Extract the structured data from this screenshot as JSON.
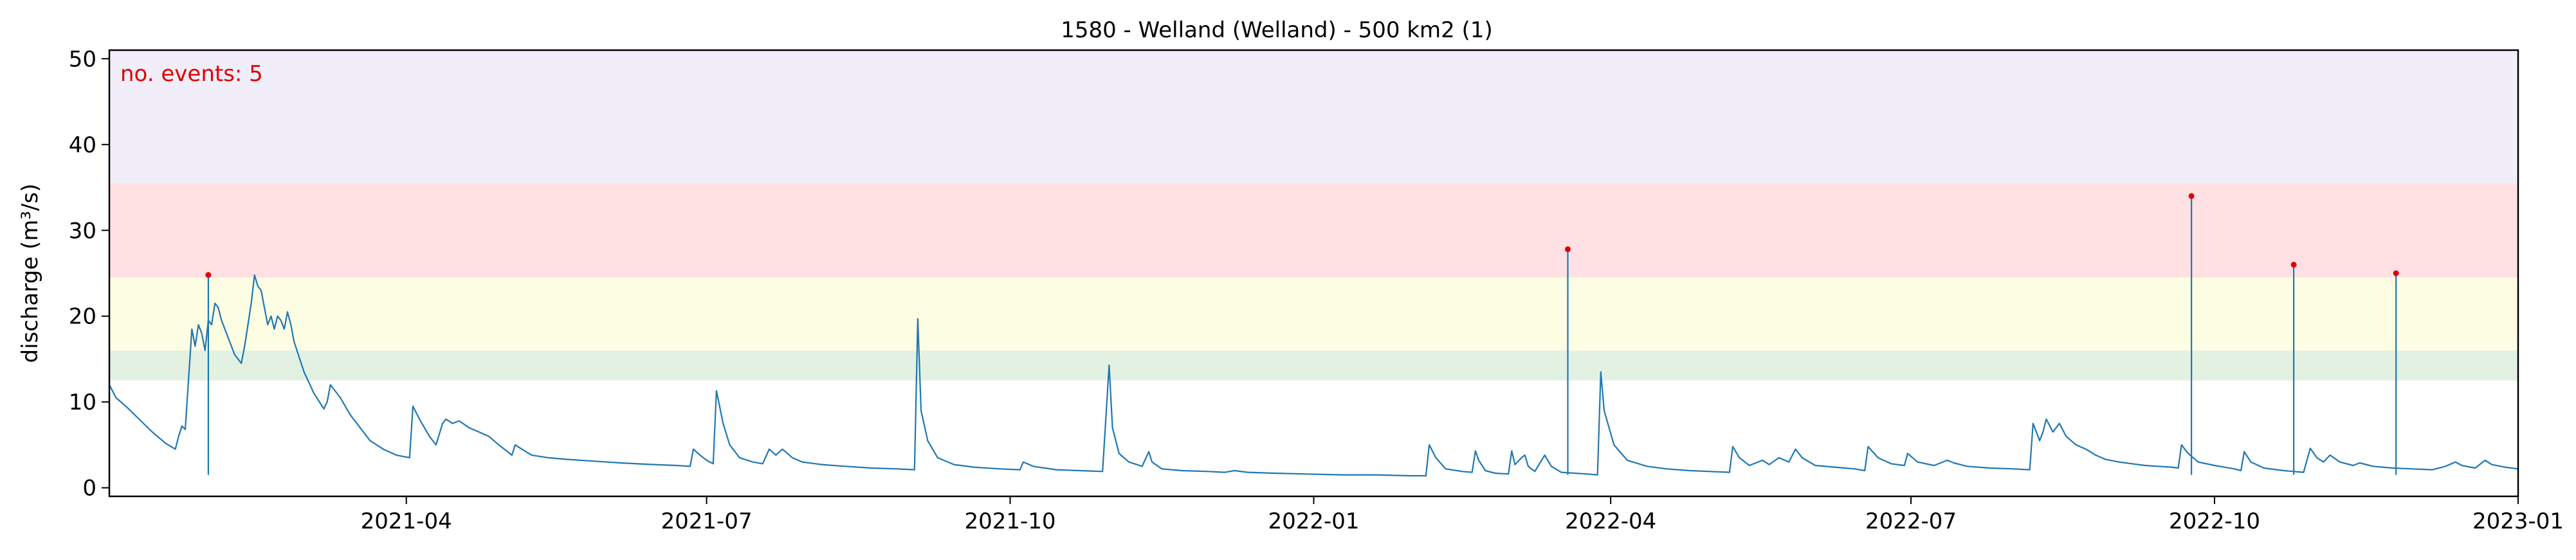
{
  "chart_data": {
    "type": "line",
    "title": "1580 - Welland (Welland) - 500 km2 (1)",
    "xlabel": "",
    "ylabel": "discharge (m³/s)",
    "xlim": [
      "2021-01-01",
      "2023-01-01"
    ],
    "ylim": [
      -1,
      51
    ],
    "grid": false,
    "x_ticks": [
      "2021-04-01",
      "2021-07-01",
      "2021-10-01",
      "2022-01-01",
      "2022-04-01",
      "2022-07-01",
      "2022-10-01",
      "2023-01-01"
    ],
    "x_tick_labels": [
      "2021-04",
      "2021-07",
      "2021-10",
      "2022-01",
      "2022-04",
      "2022-07",
      "2022-10",
      "2023-01"
    ],
    "y_ticks": [
      0,
      10,
      20,
      30,
      40,
      50
    ],
    "y_tick_labels": [
      "0",
      "10",
      "20",
      "30",
      "40",
      "50"
    ],
    "annotation": "no. events: 5",
    "bands": [
      {
        "y0": 12.5,
        "y1": 16,
        "color": "#e3f1e3"
      },
      {
        "y0": 16,
        "y1": 24.5,
        "color": "#fdfde3"
      },
      {
        "y0": 24.5,
        "y1": 35.5,
        "color": "#ffe1e3"
      },
      {
        "y0": 35.5,
        "y1": 51,
        "color": "#f1eefa"
      }
    ],
    "series": [
      {
        "color": "#1f77b4",
        "points": [
          [
            "2021-01-01",
            12.0
          ],
          [
            "2021-01-03",
            10.5
          ],
          [
            "2021-01-06",
            9.5
          ],
          [
            "2021-01-10",
            8.0
          ],
          [
            "2021-01-14",
            6.5
          ],
          [
            "2021-01-18",
            5.2
          ],
          [
            "2021-01-21",
            4.5
          ],
          [
            "2021-01-22",
            6.0
          ],
          [
            "2021-01-23",
            7.2
          ],
          [
            "2021-01-24",
            6.8
          ],
          [
            "2021-01-26",
            18.5
          ],
          [
            "2021-01-27",
            16.5
          ],
          [
            "2021-01-28",
            19.0
          ],
          [
            "2021-01-29",
            18.0
          ],
          [
            "2021-01-30",
            16.0
          ],
          [
            "2021-01-31",
            19.5
          ],
          [
            "2021-02-01",
            19.0
          ],
          [
            "2021-02-02",
            21.5
          ],
          [
            "2021-02-03",
            21.0
          ],
          [
            "2021-02-04",
            19.5
          ],
          [
            "2021-02-06",
            17.5
          ],
          [
            "2021-02-08",
            15.5
          ],
          [
            "2021-02-10",
            14.5
          ],
          [
            "2021-02-11",
            16.5
          ],
          [
            "2021-02-12",
            19.0
          ],
          [
            "2021-02-13",
            21.5
          ],
          [
            "2021-02-14",
            24.8
          ],
          [
            "2021-02-15",
            23.5
          ],
          [
            "2021-02-16",
            23.0
          ],
          [
            "2021-02-17",
            21.0
          ],
          [
            "2021-02-18",
            19.0
          ],
          [
            "2021-02-19",
            20.0
          ],
          [
            "2021-02-20",
            18.5
          ],
          [
            "2021-02-21",
            20.0
          ],
          [
            "2021-02-22",
            19.5
          ],
          [
            "2021-02-23",
            18.5
          ],
          [
            "2021-02-24",
            20.5
          ],
          [
            "2021-02-25",
            19.0
          ],
          [
            "2021-02-26",
            17.0
          ],
          [
            "2021-03-01",
            13.5
          ],
          [
            "2021-03-04",
            11.0
          ],
          [
            "2021-03-07",
            9.2
          ],
          [
            "2021-03-08",
            10.0
          ],
          [
            "2021-03-09",
            12.0
          ],
          [
            "2021-03-12",
            10.5
          ],
          [
            "2021-03-15",
            8.5
          ],
          [
            "2021-03-18",
            7.0
          ],
          [
            "2021-03-21",
            5.5
          ],
          [
            "2021-03-25",
            4.5
          ],
          [
            "2021-03-29",
            3.8
          ],
          [
            "2021-04-02",
            3.5
          ],
          [
            "2021-04-03",
            9.5
          ],
          [
            "2021-04-05",
            8.0
          ],
          [
            "2021-04-08",
            6.0
          ],
          [
            "2021-04-10",
            5.0
          ],
          [
            "2021-04-12",
            7.5
          ],
          [
            "2021-04-13",
            8.0
          ],
          [
            "2021-04-15",
            7.5
          ],
          [
            "2021-04-17",
            7.8
          ],
          [
            "2021-04-20",
            7.0
          ],
          [
            "2021-04-23",
            6.5
          ],
          [
            "2021-04-26",
            6.0
          ],
          [
            "2021-04-29",
            5.0
          ],
          [
            "2021-05-03",
            3.8
          ],
          [
            "2021-05-04",
            5.0
          ],
          [
            "2021-05-06",
            4.5
          ],
          [
            "2021-05-09",
            3.8
          ],
          [
            "2021-05-14",
            3.5
          ],
          [
            "2021-05-20",
            3.3
          ],
          [
            "2021-05-28",
            3.1
          ],
          [
            "2021-06-05",
            2.9
          ],
          [
            "2021-06-15",
            2.7
          ],
          [
            "2021-06-22",
            2.6
          ],
          [
            "2021-06-26",
            2.5
          ],
          [
            "2021-06-27",
            4.5
          ],
          [
            "2021-06-29",
            3.8
          ],
          [
            "2021-07-01",
            3.2
          ],
          [
            "2021-07-03",
            2.8
          ],
          [
            "2021-07-04",
            11.3
          ],
          [
            "2021-07-06",
            7.5
          ],
          [
            "2021-07-08",
            5.0
          ],
          [
            "2021-07-11",
            3.5
          ],
          [
            "2021-07-15",
            3.0
          ],
          [
            "2021-07-18",
            2.8
          ],
          [
            "2021-07-20",
            4.5
          ],
          [
            "2021-07-22",
            3.8
          ],
          [
            "2021-07-24",
            4.5
          ],
          [
            "2021-07-27",
            3.5
          ],
          [
            "2021-07-30",
            3.0
          ],
          [
            "2021-08-05",
            2.7
          ],
          [
            "2021-08-12",
            2.5
          ],
          [
            "2021-08-20",
            2.3
          ],
          [
            "2021-08-28",
            2.2
          ],
          [
            "2021-09-02",
            2.1
          ],
          [
            "2021-09-03",
            19.7
          ],
          [
            "2021-09-04",
            9.0
          ],
          [
            "2021-09-06",
            5.5
          ],
          [
            "2021-09-09",
            3.5
          ],
          [
            "2021-09-14",
            2.7
          ],
          [
            "2021-09-20",
            2.4
          ],
          [
            "2021-09-28",
            2.2
          ],
          [
            "2021-10-04",
            2.1
          ],
          [
            "2021-10-05",
            3.0
          ],
          [
            "2021-10-08",
            2.5
          ],
          [
            "2021-10-15",
            2.1
          ],
          [
            "2021-10-22",
            2.0
          ],
          [
            "2021-10-29",
            1.9
          ],
          [
            "2021-10-31",
            14.3
          ],
          [
            "2021-11-01",
            7.0
          ],
          [
            "2021-11-03",
            4.0
          ],
          [
            "2021-11-06",
            3.0
          ],
          [
            "2021-11-10",
            2.5
          ],
          [
            "2021-11-12",
            4.2
          ],
          [
            "2021-11-13",
            3.0
          ],
          [
            "2021-11-16",
            2.2
          ],
          [
            "2021-11-22",
            2.0
          ],
          [
            "2021-11-30",
            1.9
          ],
          [
            "2021-12-05",
            1.8
          ],
          [
            "2021-12-08",
            2.0
          ],
          [
            "2021-12-12",
            1.8
          ],
          [
            "2021-12-20",
            1.7
          ],
          [
            "2021-12-30",
            1.6
          ],
          [
            "2022-01-10",
            1.5
          ],
          [
            "2022-01-20",
            1.5
          ],
          [
            "2022-01-30",
            1.4
          ],
          [
            "2022-02-04",
            1.4
          ],
          [
            "2022-02-05",
            5.0
          ],
          [
            "2022-02-07",
            3.5
          ],
          [
            "2022-02-10",
            2.2
          ],
          [
            "2022-02-15",
            1.9
          ],
          [
            "2022-02-18",
            1.8
          ],
          [
            "2022-02-19",
            4.3
          ],
          [
            "2022-02-20",
            3.2
          ],
          [
            "2022-02-22",
            2.0
          ],
          [
            "2022-02-25",
            1.7
          ],
          [
            "2022-03-01",
            1.6
          ],
          [
            "2022-03-02",
            4.3
          ],
          [
            "2022-03-03",
            2.7
          ],
          [
            "2022-03-05",
            3.5
          ],
          [
            "2022-03-06",
            3.8
          ],
          [
            "2022-03-07",
            2.5
          ],
          [
            "2022-03-09",
            1.9
          ],
          [
            "2022-03-12",
            3.8
          ],
          [
            "2022-03-14",
            2.5
          ],
          [
            "2022-03-17",
            1.8
          ],
          [
            "2022-03-25",
            1.6
          ],
          [
            "2022-03-28",
            1.5
          ],
          [
            "2022-03-29",
            13.5
          ],
          [
            "2022-03-30",
            9.0
          ],
          [
            "2022-04-02",
            5.0
          ],
          [
            "2022-04-06",
            3.2
          ],
          [
            "2022-04-12",
            2.5
          ],
          [
            "2022-04-18",
            2.2
          ],
          [
            "2022-04-25",
            2.0
          ],
          [
            "2022-05-01",
            1.9
          ],
          [
            "2022-05-07",
            1.8
          ],
          [
            "2022-05-08",
            4.8
          ],
          [
            "2022-05-10",
            3.5
          ],
          [
            "2022-05-13",
            2.6
          ],
          [
            "2022-05-17",
            3.2
          ],
          [
            "2022-05-19",
            2.7
          ],
          [
            "2022-05-22",
            3.5
          ],
          [
            "2022-05-25",
            3.0
          ],
          [
            "2022-05-27",
            4.5
          ],
          [
            "2022-05-29",
            3.5
          ],
          [
            "2022-06-02",
            2.6
          ],
          [
            "2022-06-08",
            2.4
          ],
          [
            "2022-06-14",
            2.2
          ],
          [
            "2022-06-17",
            2.0
          ],
          [
            "2022-06-18",
            4.8
          ],
          [
            "2022-06-21",
            3.5
          ],
          [
            "2022-06-25",
            2.8
          ],
          [
            "2022-06-29",
            2.6
          ],
          [
            "2022-06-30",
            4.0
          ],
          [
            "2022-07-03",
            3.0
          ],
          [
            "2022-07-08",
            2.6
          ],
          [
            "2022-07-12",
            3.2
          ],
          [
            "2022-07-14",
            2.9
          ],
          [
            "2022-07-18",
            2.5
          ],
          [
            "2022-07-25",
            2.3
          ],
          [
            "2022-08-01",
            2.2
          ],
          [
            "2022-08-06",
            2.1
          ],
          [
            "2022-08-07",
            7.5
          ],
          [
            "2022-08-09",
            5.5
          ],
          [
            "2022-08-10",
            6.5
          ],
          [
            "2022-08-11",
            8.0
          ],
          [
            "2022-08-13",
            6.5
          ],
          [
            "2022-08-15",
            7.5
          ],
          [
            "2022-08-17",
            6.0
          ],
          [
            "2022-08-20",
            5.0
          ],
          [
            "2022-08-23",
            4.5
          ],
          [
            "2022-08-26",
            3.8
          ],
          [
            "2022-08-29",
            3.3
          ],
          [
            "2022-09-02",
            3.0
          ],
          [
            "2022-09-06",
            2.8
          ],
          [
            "2022-09-10",
            2.6
          ],
          [
            "2022-09-14",
            2.5
          ],
          [
            "2022-09-18",
            2.4
          ],
          [
            "2022-09-20",
            2.3
          ],
          [
            "2022-09-21",
            5.0
          ],
          [
            "2022-09-23",
            4.0
          ],
          [
            "2022-09-26",
            3.0
          ],
          [
            "2022-10-01",
            2.6
          ],
          [
            "2022-10-04",
            2.4
          ],
          [
            "2022-10-07",
            2.2
          ],
          [
            "2022-10-09",
            2.0
          ],
          [
            "2022-10-10",
            4.2
          ],
          [
            "2022-10-12",
            3.0
          ],
          [
            "2022-10-16",
            2.3
          ],
          [
            "2022-10-22",
            2.0
          ],
          [
            "2022-10-25",
            1.9
          ],
          [
            "2022-10-28",
            1.8
          ],
          [
            "2022-10-30",
            4.6
          ],
          [
            "2022-11-01",
            3.5
          ],
          [
            "2022-11-03",
            3.0
          ],
          [
            "2022-11-05",
            3.8
          ],
          [
            "2022-11-08",
            3.0
          ],
          [
            "2022-11-12",
            2.6
          ],
          [
            "2022-11-14",
            2.9
          ],
          [
            "2022-11-18",
            2.5
          ],
          [
            "2022-11-24",
            2.3
          ],
          [
            "2022-11-30",
            2.2
          ],
          [
            "2022-12-06",
            2.1
          ],
          [
            "2022-12-10",
            2.5
          ],
          [
            "2022-12-13",
            3.0
          ],
          [
            "2022-12-15",
            2.6
          ],
          [
            "2022-12-19",
            2.3
          ],
          [
            "2022-12-20",
            2.6
          ],
          [
            "2022-12-22",
            3.2
          ],
          [
            "2022-12-24",
            2.7
          ],
          [
            "2022-12-28",
            2.4
          ],
          [
            "2023-01-01",
            2.2
          ]
        ]
      }
    ],
    "events": [
      {
        "x": "2021-01-31",
        "y": 24.8
      },
      {
        "x": "2022-03-19",
        "y": 27.8
      },
      {
        "x": "2022-09-24",
        "y": 34.0
      },
      {
        "x": "2022-10-25",
        "y": 26.0
      },
      {
        "x": "2022-11-25",
        "y": 25.0
      }
    ],
    "event_color": "#e00000",
    "line_color": "#1f77b4"
  }
}
